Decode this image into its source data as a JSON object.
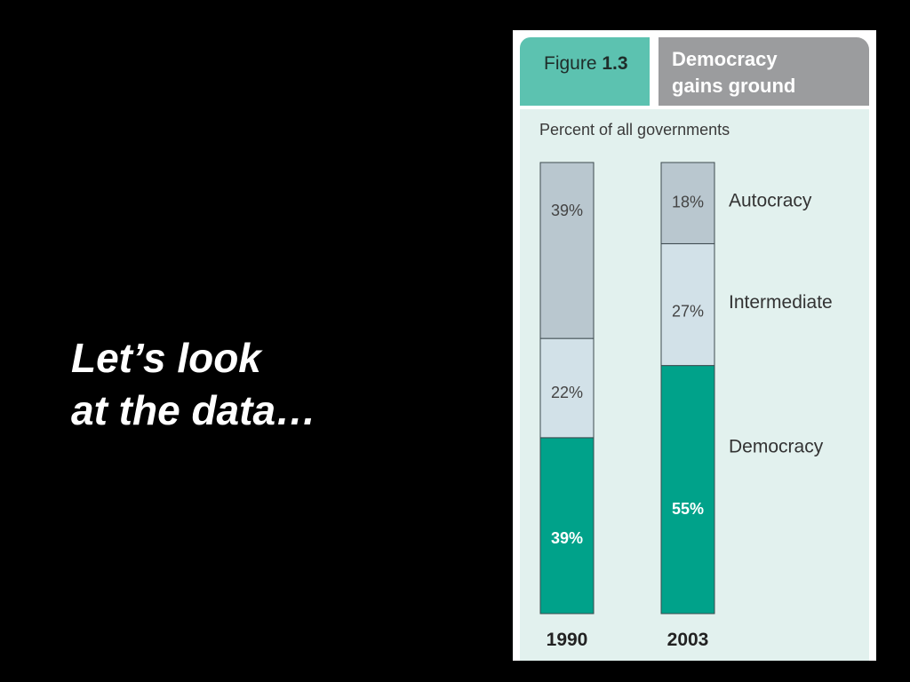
{
  "slide": {
    "line1": "Let’s look",
    "line2": "at the data…"
  },
  "figure": {
    "label_prefix": "Figure",
    "label_number": "1.3",
    "title_line1": "Democracy",
    "title_line2": "gains ground",
    "subtitle": "Percent of all governments"
  },
  "chart_data": {
    "type": "bar",
    "stacked": true,
    "categories": [
      "1990",
      "2003"
    ],
    "series": [
      {
        "name": "Democracy",
        "values": [
          39,
          55
        ],
        "labels": [
          "39%",
          "55%"
        ],
        "color": "#00a28a",
        "label_color": "#ffffff",
        "label_bold": true
      },
      {
        "name": "Intermediate",
        "values": [
          22,
          27
        ],
        "labels": [
          "22%",
          "27%"
        ],
        "color": "#d2e1e8",
        "label_color": "#444444",
        "label_bold": false
      },
      {
        "name": "Autocracy",
        "values": [
          39,
          18
        ],
        "labels": [
          "39%",
          "18%"
        ],
        "color": "#b9c7cf",
        "label_color": "#444444",
        "label_bold": false
      }
    ],
    "title": "Democracy gains ground",
    "ylabel": "Percent of all governments",
    "legend_position": "right, beside 2003 bar",
    "grid": false
  }
}
